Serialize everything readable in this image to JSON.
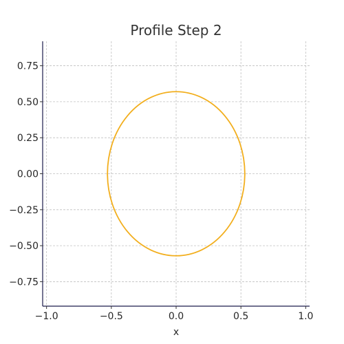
{
  "chart_data": {
    "type": "line",
    "title": "Profile Step 2",
    "xlabel": "x",
    "ylabel": "",
    "xlim": [
      -1.03,
      1.03
    ],
    "ylim": [
      -0.92,
      0.92
    ],
    "grid": true,
    "x_ticks": [
      -1.0,
      -0.5,
      0.0,
      0.5,
      1.0
    ],
    "x_tick_labels": [
      "−1.0",
      "−0.5",
      "0.0",
      "0.5",
      "1.0"
    ],
    "y_ticks": [
      -0.75,
      -0.5,
      -0.25,
      0.0,
      0.25,
      0.5,
      0.75
    ],
    "y_tick_labels": [
      "−0.75",
      "−0.50",
      "−0.25",
      "0.00",
      "0.25",
      "0.50",
      "0.75"
    ],
    "series": [
      {
        "shape": "ellipse",
        "center": [
          0.0,
          0.0
        ],
        "semi_axis_x": 0.53,
        "semi_axis_y": 0.57,
        "color": "#f2ae1c"
      }
    ]
  }
}
